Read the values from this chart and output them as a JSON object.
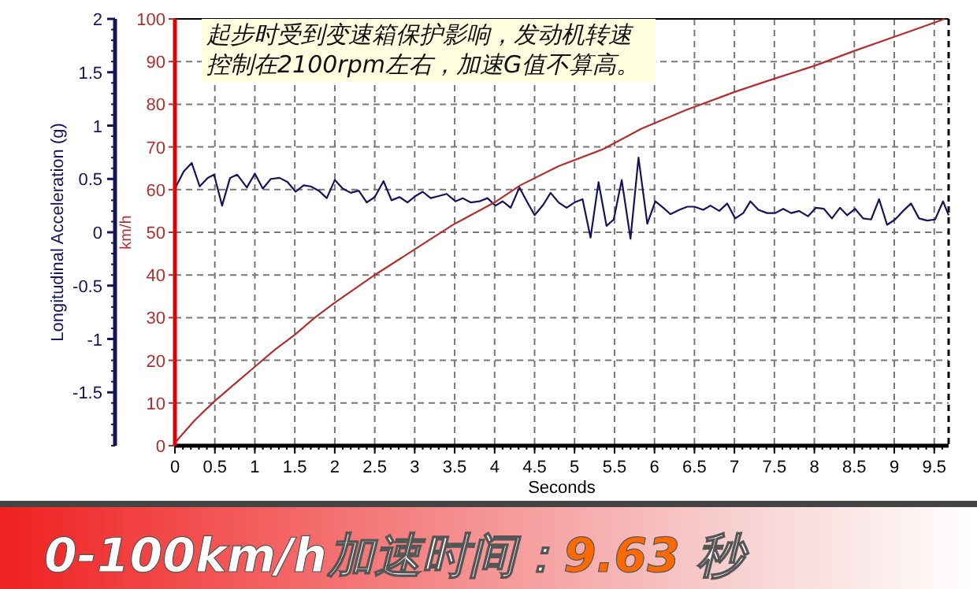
{
  "chart_data": {
    "type": "line",
    "title": "0-100km/h加速时间：9.63 秒",
    "xlabel": "Seconds",
    "ylabel": "Longitudinal Acceleration (g)",
    "y2label": "km/h",
    "annotations": [
      "起步时受到变速箱保护影响，发动机转速控制在2100rpm左右，加速G值不算高。"
    ],
    "xlim": [
      0,
      9.68
    ],
    "xticks": [
      0,
      0.5,
      1,
      1.5,
      2,
      2.5,
      3,
      3.5,
      4,
      4.5,
      5,
      5.5,
      6,
      6.5,
      7,
      7.5,
      8,
      8.5,
      9,
      9.5
    ],
    "ylim": [
      -2,
      2
    ],
    "yticks": [
      -1.5,
      -1,
      -0.5,
      0,
      0.5,
      1,
      1.5,
      2
    ],
    "y2lim": [
      0,
      100
    ],
    "y2ticks": [
      0,
      10,
      20,
      30,
      40,
      50,
      60,
      70,
      80,
      90,
      100
    ],
    "grid": true,
    "marker": "none",
    "line_style": "solid",
    "series": [
      {
        "color": "#14145a",
        "axis": "y",
        "x": [
          0,
          0.11,
          0.21,
          0.31,
          0.41,
          0.49,
          0.59,
          0.69,
          0.78,
          0.9,
          1.0,
          1.1,
          1.2,
          1.31,
          1.41,
          1.51,
          1.61,
          1.7,
          1.8,
          1.9,
          2.0,
          2.1,
          2.2,
          2.3,
          2.4,
          2.5,
          2.61,
          2.71,
          2.81,
          2.91,
          3.01,
          3.1,
          3.2,
          3.3,
          3.4,
          3.51,
          3.6,
          3.7,
          3.81,
          3.91,
          4.01,
          4.1,
          4.2,
          4.31,
          4.41,
          4.5,
          4.61,
          4.7,
          4.8,
          4.9,
          5.0,
          5.1,
          5.2,
          5.3,
          5.4,
          5.49,
          5.59,
          5.7,
          5.8,
          5.91,
          6.01,
          6.11,
          6.2,
          6.31,
          6.41,
          6.5,
          6.61,
          6.7,
          6.81,
          6.91,
          7.01,
          7.11,
          7.2,
          7.3,
          7.41,
          7.51,
          7.61,
          7.71,
          7.81,
          7.92,
          8.02,
          8.12,
          8.22,
          8.32,
          8.41,
          8.51,
          8.61,
          8.71,
          8.81,
          8.91,
          9.01,
          9.11,
          9.21,
          9.31,
          9.41,
          9.51,
          9.61,
          9.68
        ],
        "values": [
          0.41,
          0.57,
          0.65,
          0.43,
          0.51,
          0.54,
          0.25,
          0.51,
          0.54,
          0.42,
          0.55,
          0.41,
          0.5,
          0.51,
          0.47,
          0.38,
          0.44,
          0.43,
          0.39,
          0.32,
          0.49,
          0.41,
          0.37,
          0.39,
          0.28,
          0.33,
          0.48,
          0.3,
          0.33,
          0.28,
          0.34,
          0.38,
          0.32,
          0.34,
          0.36,
          0.29,
          0.32,
          0.28,
          0.29,
          0.32,
          0.25,
          0.29,
          0.23,
          0.42,
          0.28,
          0.16,
          0.26,
          0.37,
          0.28,
          0.23,
          0.28,
          0.31,
          -0.05,
          0.47,
          0.06,
          0.12,
          0.49,
          -0.06,
          0.7,
          0.08,
          0.29,
          0.23,
          0.17,
          0.21,
          0.24,
          0.24,
          0.21,
          0.25,
          0.2,
          0.27,
          0.13,
          0.18,
          0.29,
          0.21,
          0.18,
          0.18,
          0.22,
          0.18,
          0.2,
          0.15,
          0.23,
          0.22,
          0.13,
          0.23,
          0.16,
          0.22,
          0.13,
          0.12,
          0.31,
          0.07,
          0.12,
          0.2,
          0.27,
          0.13,
          0.11,
          0.12,
          0.29,
          0.16
        ]
      },
      {
        "color": "#b03030",
        "axis": "y2",
        "x": [
          0,
          0.25,
          0.5,
          0.75,
          1,
          1.25,
          1.5,
          1.75,
          2,
          2.5,
          3,
          3.5,
          4,
          4.32,
          4.8,
          5.36,
          5.84,
          6.4,
          7.02,
          7.5,
          8,
          8.5,
          9,
          9.3,
          9.63
        ],
        "values": [
          0.7,
          6,
          10.5,
          14.5,
          18.5,
          22.5,
          26,
          30,
          33.5,
          40,
          46,
          52,
          57,
          61,
          65.5,
          69.5,
          74.3,
          78.7,
          83,
          86,
          89,
          92.5,
          95.8,
          97.8,
          100
        ]
      }
    ]
  }
}
